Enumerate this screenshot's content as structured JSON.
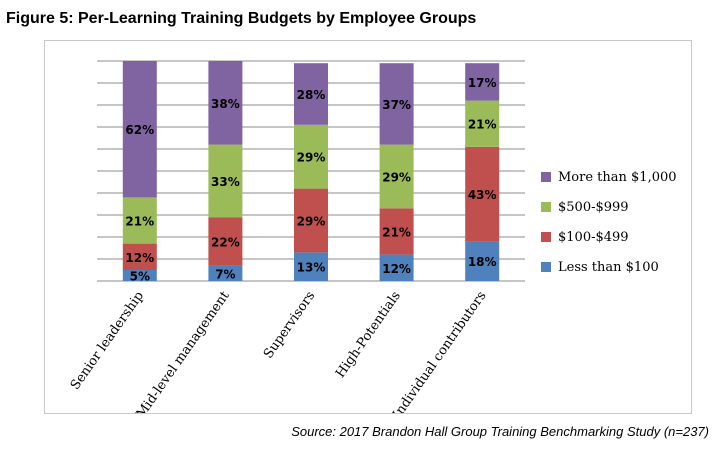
{
  "title": "Figure 5: Per-Learning Training Budgets by Employee Groups",
  "source": "Source: 2017 Brandon Hall Group Training Benchmarking Study (n=237)",
  "chart_data": {
    "type": "bar",
    "stacked": true,
    "percent": true,
    "grid": true,
    "legend_position": "right",
    "categories": [
      "Senior leadership",
      "Mid-level management",
      "Supervisors",
      "High-Potentials",
      "Individual contributors"
    ],
    "series": [
      {
        "name": "Less than $100",
        "color": "#4f81bd",
        "values": [
          5,
          7,
          13,
          12,
          18
        ]
      },
      {
        "name": "$100-$499",
        "color": "#c0504d",
        "values": [
          12,
          22,
          29,
          21,
          43
        ]
      },
      {
        "name": "$500-$999",
        "color": "#9bbb59",
        "values": [
          21,
          33,
          29,
          29,
          21
        ]
      },
      {
        "name": "More than $1,000",
        "color": "#8064a2",
        "values": [
          62,
          38,
          28,
          37,
          17
        ]
      }
    ],
    "data_labels": [
      [
        "5%",
        "7%",
        "13%",
        "12%",
        "18%"
      ],
      [
        "12%",
        "22%",
        "29%",
        "21%",
        "43%"
      ],
      [
        "21%",
        "33%",
        "29%",
        "29%",
        "21%"
      ],
      [
        "62%",
        "38%",
        "28%",
        "37%",
        "17%"
      ]
    ]
  }
}
